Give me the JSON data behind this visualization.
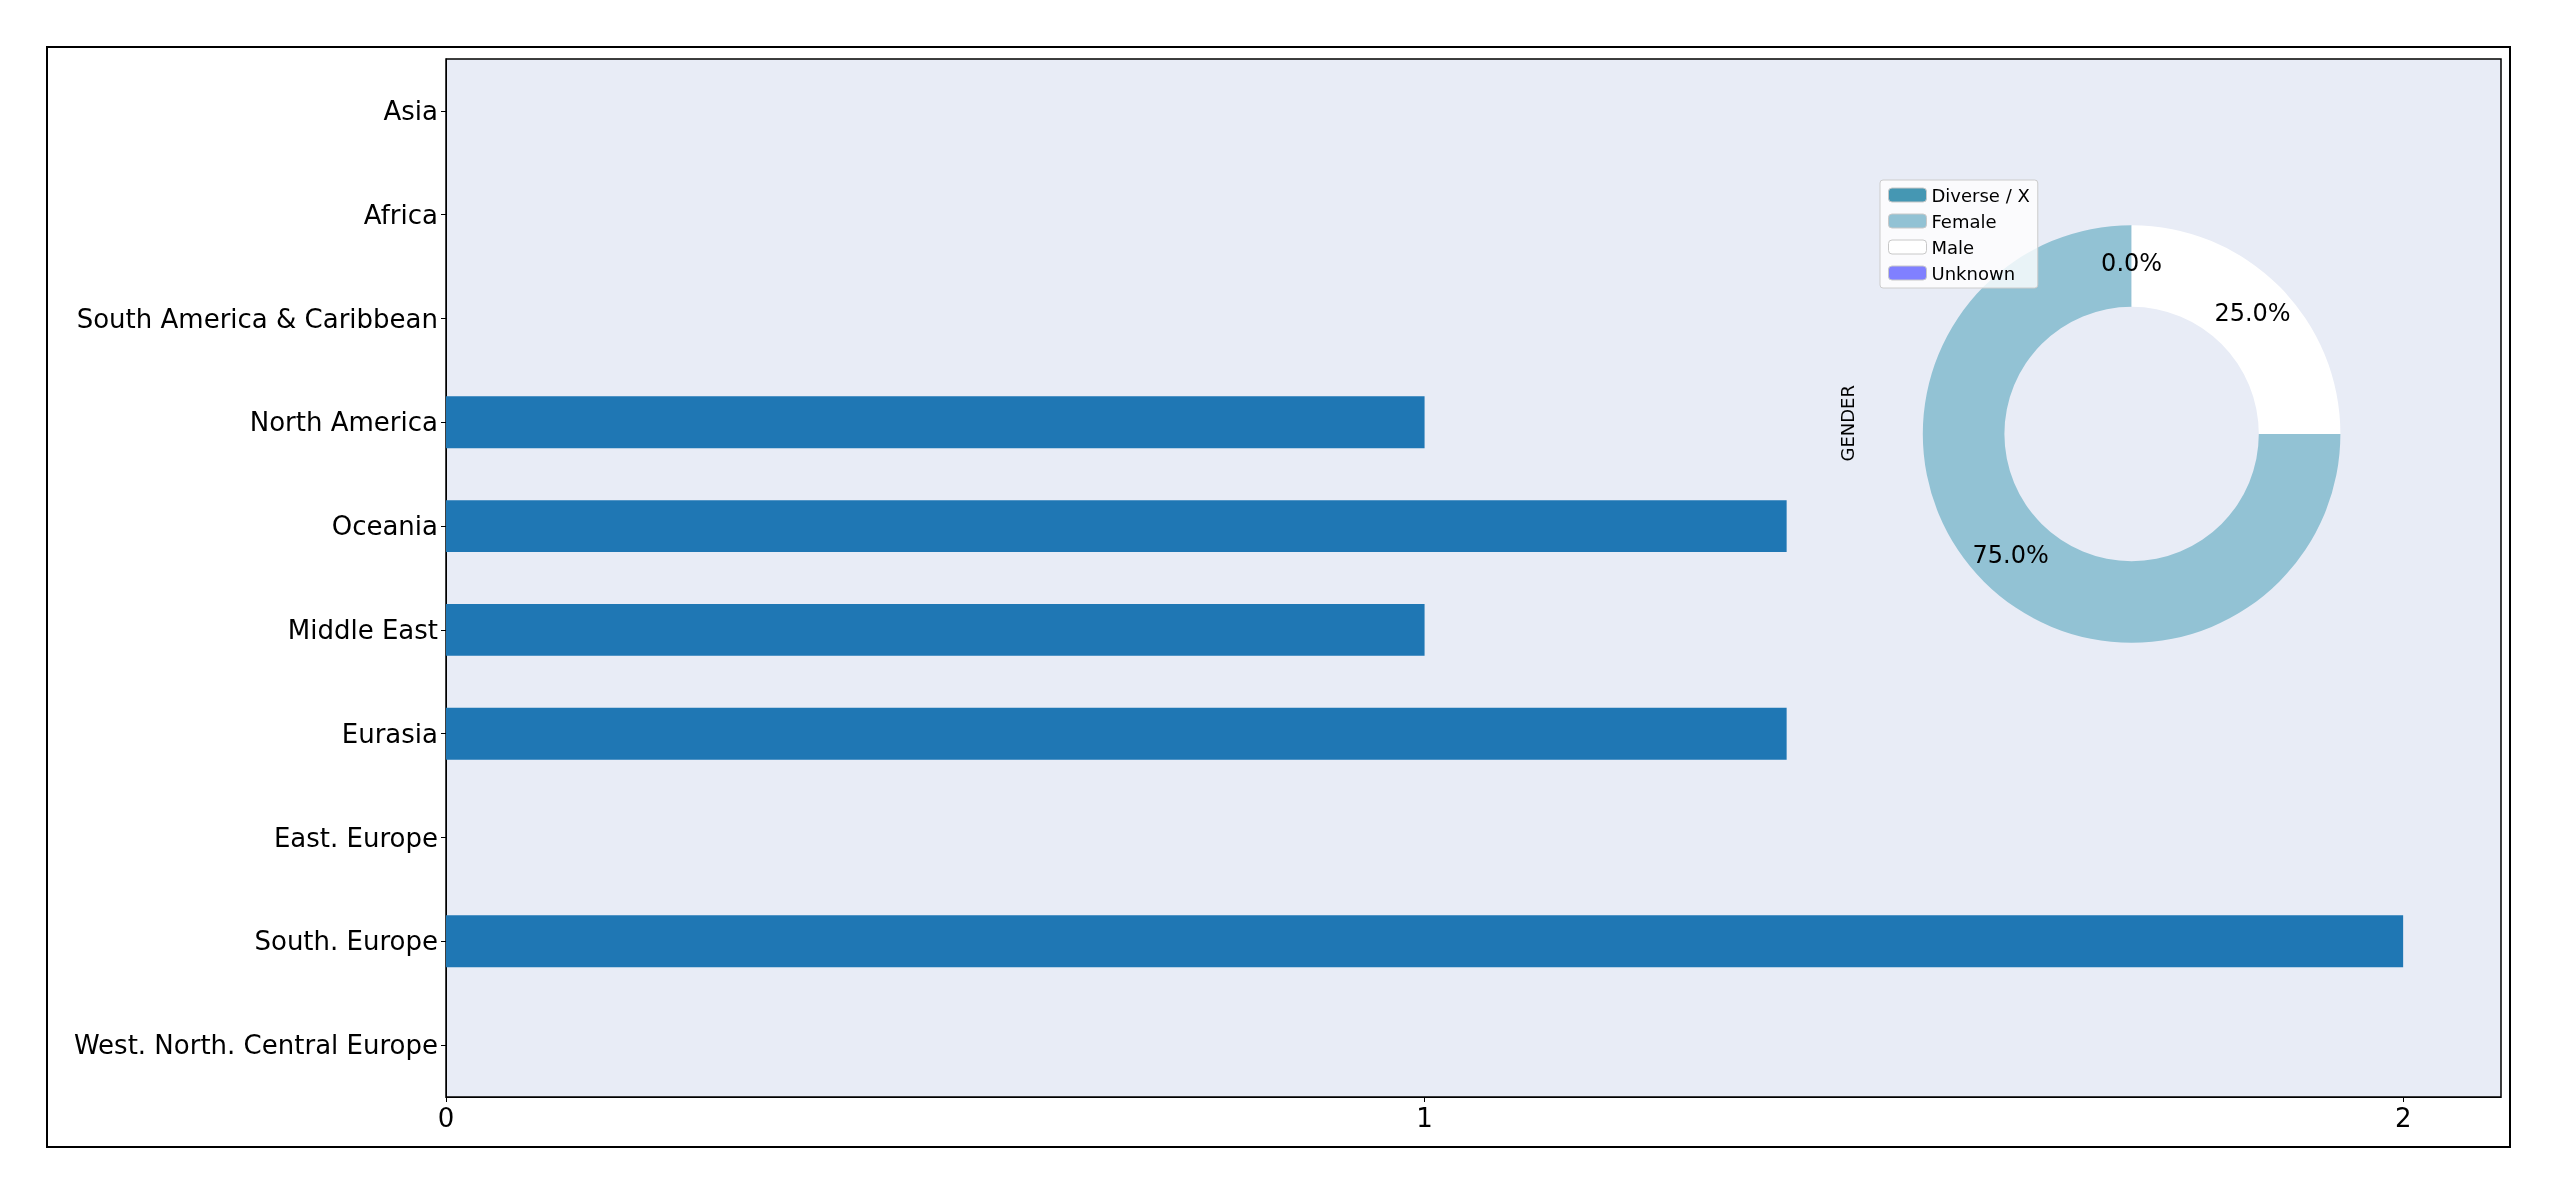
{
  "chart_data": [
    {
      "type": "bar",
      "orientation": "horizontal",
      "categories": [
        "Asia",
        "Africa",
        "South America & Caribbean",
        "North America",
        "Oceania",
        "Middle East",
        "Eurasia",
        "East. Europe",
        "South. Europe",
        "West. North. Central Europe"
      ],
      "values": [
        0,
        0,
        0,
        1,
        1.37,
        1,
        1.37,
        0,
        2,
        0
      ],
      "color": "#1f77b4",
      "xlim": [
        0,
        2.1
      ],
      "xticks": [
        0,
        1,
        2
      ],
      "grid": false,
      "legend": false
    },
    {
      "type": "donut",
      "ylabel": "GENDER",
      "categories": [
        "Diverse / X",
        "Female",
        "Male",
        "Unknown"
      ],
      "values": [
        0,
        75,
        25,
        0
      ],
      "colors": [
        "#4597b3",
        "#92c2d4",
        "#ffffff",
        "#8080ff"
      ],
      "value_labels": [
        "0.0%",
        "75.0%",
        "25.0%",
        null
      ],
      "legend": "top left"
    }
  ]
}
